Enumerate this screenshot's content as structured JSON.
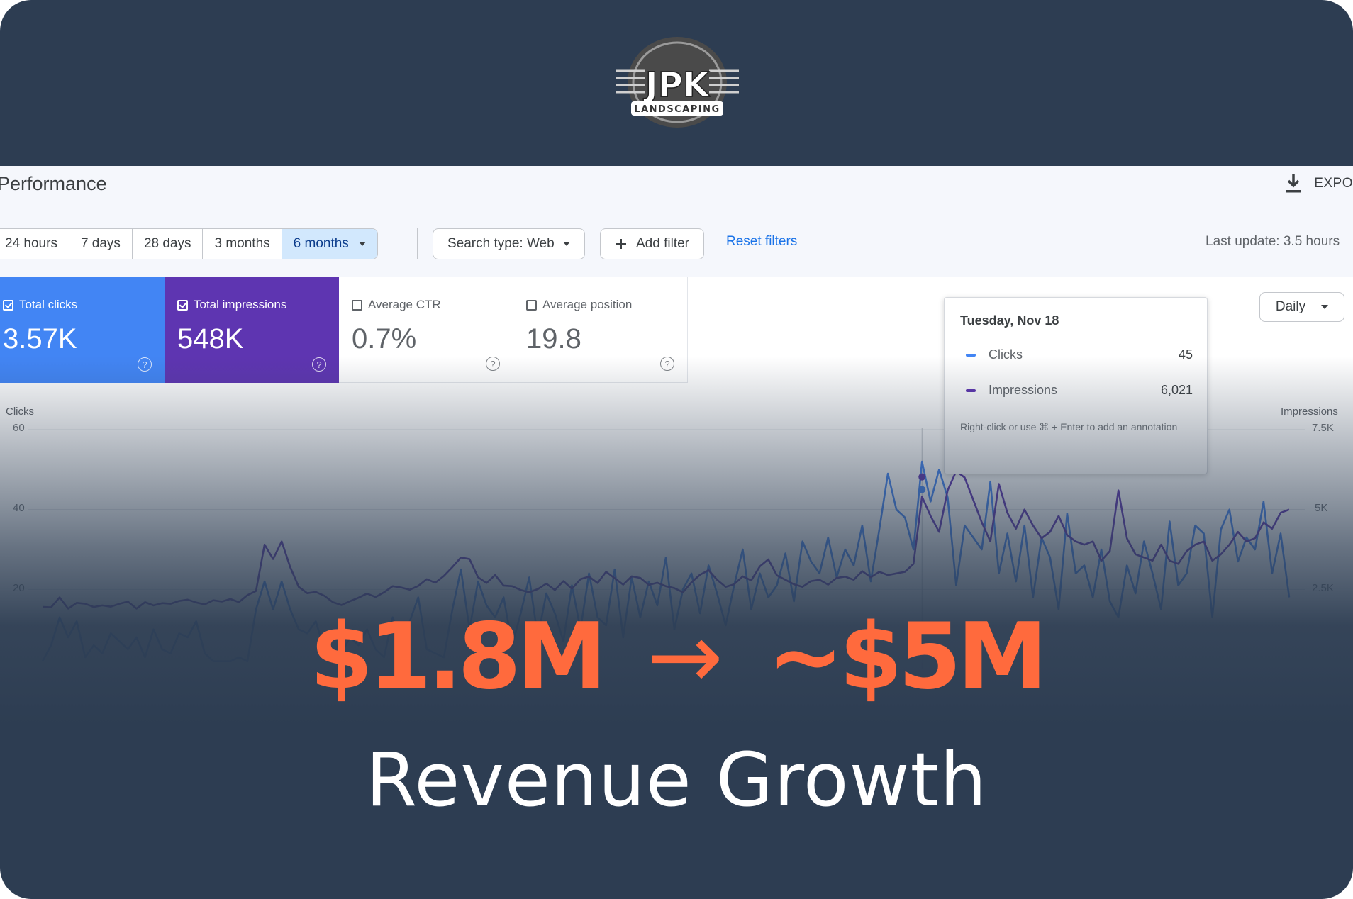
{
  "brand": {
    "name": "JPK",
    "tagline": "LANDSCAPING",
    "colors": {
      "background": "#2d3d52",
      "accent": "#ff6a3d",
      "clicks": "#4285f4",
      "impressions": "#5e35b1"
    }
  },
  "console": {
    "title": "Performance",
    "export_label": "EXPO",
    "export_icon": "download-icon",
    "date_ranges": [
      "24 hours",
      "7 days",
      "28 days",
      "3 months",
      "6 months"
    ],
    "active_range": "6 months",
    "search_type": "Search type: Web",
    "add_filter": "Add filter",
    "reset_filters": "Reset filters",
    "last_update": "Last update: 3.5 hours",
    "granularity": "Daily",
    "metrics": [
      {
        "label": "Total clicks",
        "value": "3.57K",
        "checked": true
      },
      {
        "label": "Total impressions",
        "value": "548K",
        "checked": true
      },
      {
        "label": "Average CTR",
        "value": "0.7%",
        "checked": false
      },
      {
        "label": "Average position",
        "value": "19.8",
        "checked": false
      }
    ],
    "tooltip": {
      "date": "Tuesday, Nov 18",
      "clicks_label": "Clicks",
      "clicks_value": "45",
      "impressions_label": "Impressions",
      "impressions_value": "6,021",
      "hint": "Right-click or use ⌘ + Enter to add an annotation"
    }
  },
  "chart_data": {
    "type": "line",
    "ylabel_left": "Clicks",
    "ylabel_right": "Impressions",
    "left_ticks": [
      "60",
      "40",
      "20"
    ],
    "right_ticks": [
      "7.5K",
      "5K",
      "2.5K"
    ],
    "ylim_left": [
      0,
      60
    ],
    "ylim_right": [
      0,
      7500
    ],
    "series": [
      {
        "name": "Clicks",
        "axis": "left",
        "values": [
          2,
          6,
          13,
          8,
          12,
          3,
          6,
          4,
          9,
          7,
          5,
          8,
          3,
          10,
          5,
          4,
          9,
          8,
          12,
          4,
          2,
          2,
          2,
          3,
          2,
          15,
          22,
          15,
          22,
          15,
          10,
          9,
          12,
          5,
          3,
          4,
          8,
          6,
          10,
          5,
          3,
          13,
          8,
          12,
          18,
          5,
          4,
          3,
          15,
          25,
          10,
          22,
          16,
          13,
          18,
          6,
          14,
          23,
          8,
          19,
          14,
          7,
          21,
          10,
          24,
          13,
          11,
          25,
          8,
          23,
          13,
          22,
          16,
          28,
          10,
          20,
          24,
          14,
          26,
          19,
          11,
          21,
          30,
          15,
          24,
          18,
          21,
          29,
          17,
          32,
          27,
          24,
          33,
          23,
          30,
          26,
          36,
          22,
          35,
          49,
          40,
          38,
          30,
          52,
          42,
          50,
          43,
          21,
          36,
          33,
          30,
          47,
          24,
          34,
          22,
          36,
          18,
          33,
          28,
          15,
          39,
          24,
          26,
          18,
          30,
          17,
          13,
          26,
          19,
          32,
          24,
          15,
          37,
          21,
          24,
          36,
          34,
          13,
          35,
          40,
          27,
          33,
          30,
          42,
          24,
          34,
          18
        ]
      },
      {
        "name": "Impressions",
        "axis": "right",
        "values": [
          1950,
          1940,
          2250,
          1900,
          2080,
          2050,
          1950,
          2000,
          1960,
          2050,
          2120,
          1900,
          2100,
          2000,
          2070,
          2050,
          2140,
          2180,
          2090,
          2030,
          2160,
          2120,
          2200,
          2100,
          2320,
          2450,
          3900,
          3450,
          4000,
          3200,
          2580,
          2380,
          2420,
          2300,
          2100,
          2010,
          2130,
          2240,
          2370,
          2260,
          2410,
          2600,
          2560,
          2490,
          2610,
          2820,
          2710,
          2920,
          3200,
          3500,
          3450,
          2880,
          2700,
          2950,
          2620,
          2600,
          2480,
          2410,
          2510,
          2680,
          2480,
          2760,
          2520,
          2820,
          2900,
          2700,
          3050,
          2850,
          2650,
          2910,
          2860,
          2640,
          2710,
          2600,
          2540,
          2410,
          2720,
          2960,
          3100,
          2800,
          2580,
          2660,
          2910,
          2780,
          3220,
          3440,
          2940,
          2800,
          2660,
          2580,
          2760,
          2800,
          2650,
          2860,
          2900,
          2800,
          3070,
          2880,
          3050,
          2950,
          3000,
          3050,
          3300,
          5400,
          4800,
          4300,
          5600,
          6200,
          6000,
          5300,
          4600,
          4000,
          5800,
          4900,
          4400,
          5000,
          4500,
          4100,
          4300,
          4800,
          4200,
          4000,
          3900,
          4000,
          3400,
          3700,
          5600,
          4100,
          3600,
          3500,
          3400,
          3900,
          3400,
          3300,
          3700,
          3900,
          4000,
          3400,
          3600,
          3900,
          4300,
          4000,
          4100,
          4600,
          4400,
          4900,
          5000
        ]
      }
    ],
    "highlight": {
      "label": "Tuesday, Nov 18",
      "clicks": 45,
      "impressions": 6021
    }
  },
  "headline": {
    "from": "$1.8M",
    "arrow": "→",
    "to": "~$5M",
    "subtitle": "Revenue Growth"
  }
}
